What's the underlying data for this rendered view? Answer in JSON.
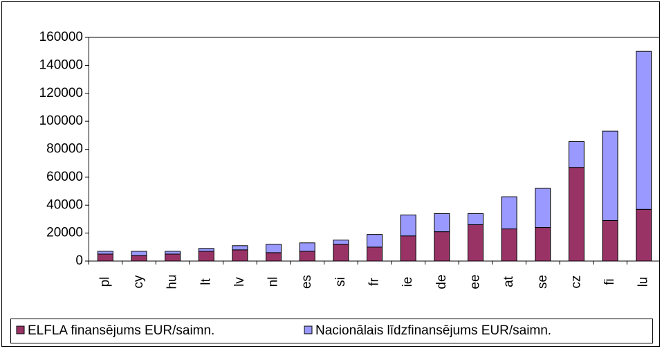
{
  "chart_data": {
    "type": "stacked_bar",
    "categories": [
      "pl",
      "cy",
      "hu",
      "lt",
      "lv",
      "nl",
      "es",
      "si",
      "fr",
      "ie",
      "de",
      "ee",
      "at",
      "se",
      "cz",
      "fi",
      "lu"
    ],
    "series": [
      {
        "name": "ELFLA finansējums EUR/saimn.",
        "color": "#993366",
        "values": [
          5000,
          4000,
          5000,
          7000,
          8000,
          6000,
          7000,
          12000,
          10000,
          18000,
          21000,
          26000,
          23000,
          24000,
          67000,
          29000,
          37000
        ]
      },
      {
        "name": "Nacionālais līdzfinansējums EUR/saimn.",
        "color": "#9999ff",
        "values": [
          2000,
          3000,
          2000,
          2000,
          3000,
          6000,
          6000,
          3000,
          9000,
          15000,
          13000,
          8000,
          23000,
          28000,
          18500,
          64000,
          113000
        ]
      }
    ],
    "ylim": [
      0,
      160000
    ],
    "yticks": [
      0,
      20000,
      40000,
      60000,
      80000,
      100000,
      120000,
      140000,
      160000
    ],
    "legend": "bottom"
  }
}
